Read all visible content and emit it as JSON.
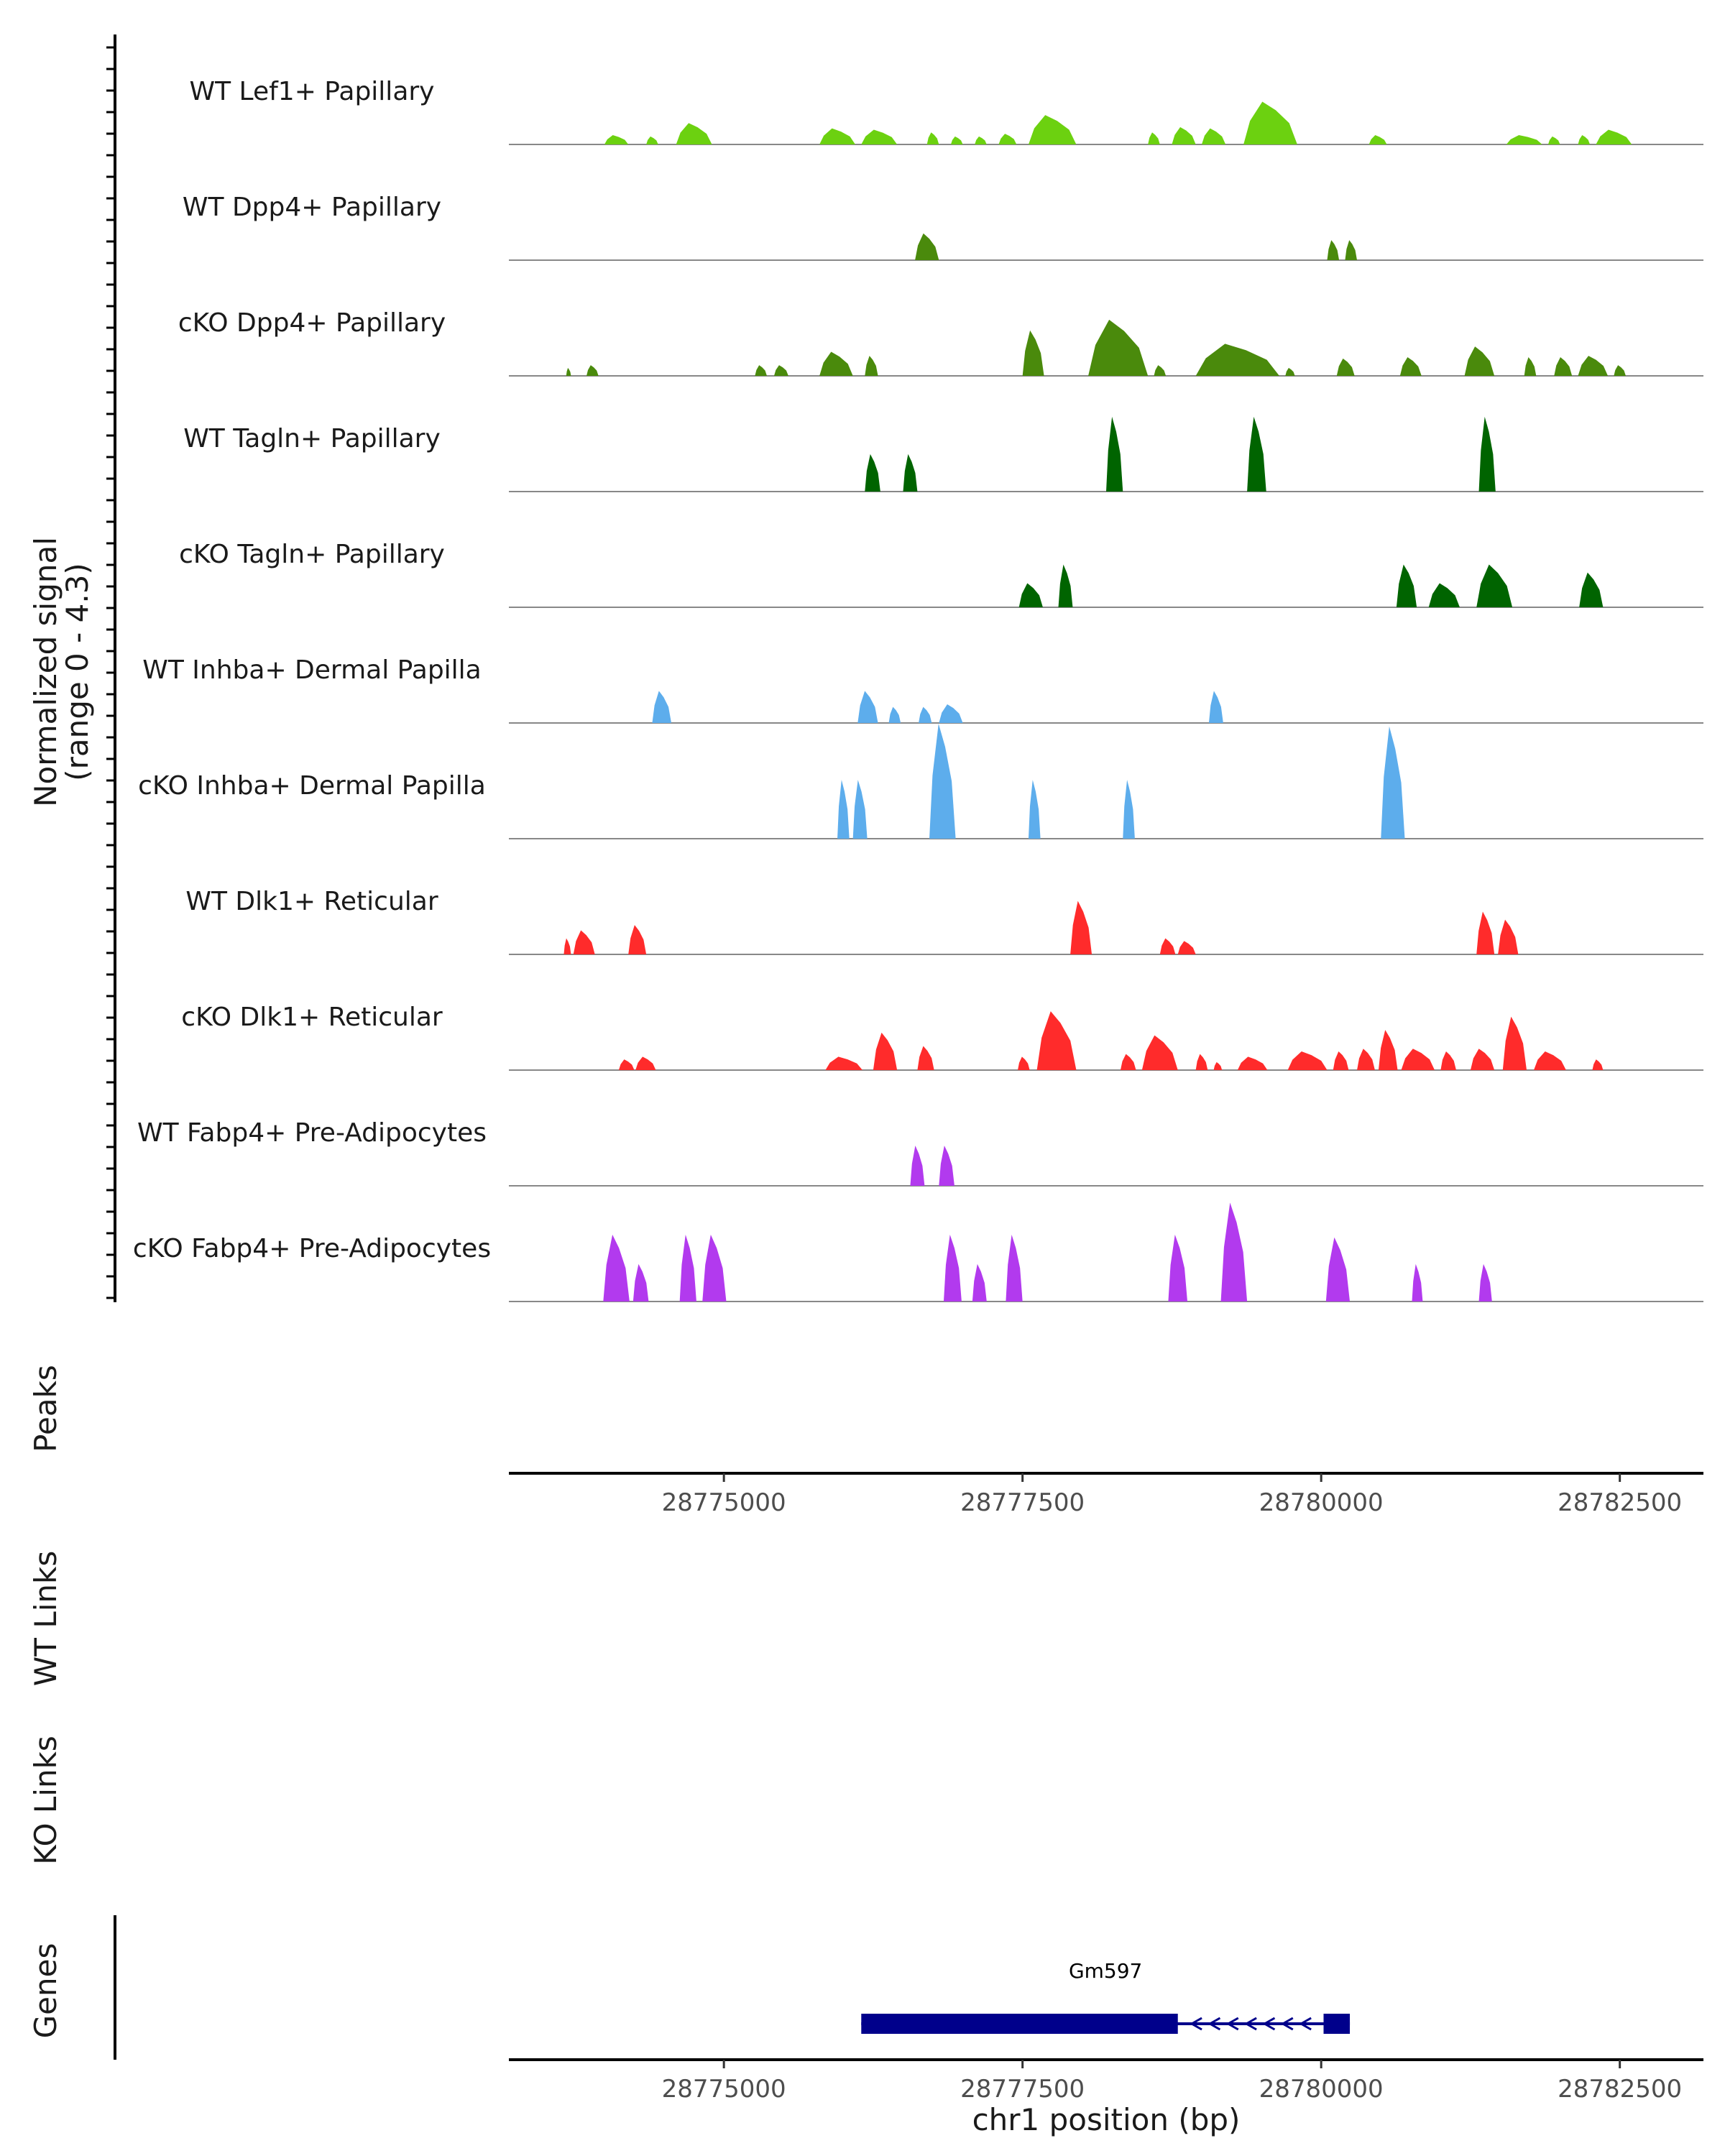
{
  "chart_data": {
    "type": "area",
    "y_axis_title_line1": "Normalized signal",
    "y_axis_title_line2": "(range 0 - 4.3)",
    "y_range": [
      0,
      4.3
    ],
    "chromosome": "chr1",
    "xlim": [
      28773200,
      28783200
    ],
    "xlabel": "chr1 position (bp)",
    "x_ticks": [
      28775000,
      28777500,
      28780000,
      28782500
    ],
    "x_tick_labels": [
      "28775000",
      "28777500",
      "28780000",
      "28782500"
    ],
    "tracks": [
      {
        "name": "WT Lef1+ Papillary",
        "color": "#6CD110",
        "peaks": [
          [
            28774000,
            28774200,
            0.35
          ],
          [
            28774350,
            28774450,
            0.3
          ],
          [
            28774600,
            28774900,
            0.8
          ],
          [
            28775800,
            28776100,
            0.6
          ],
          [
            28776150,
            28776450,
            0.55
          ],
          [
            28776700,
            28776800,
            0.45
          ],
          [
            28776900,
            28777000,
            0.3
          ],
          [
            28777100,
            28777200,
            0.3
          ],
          [
            28777300,
            28777450,
            0.4
          ],
          [
            28777550,
            28777950,
            1.1
          ],
          [
            28778550,
            28778650,
            0.45
          ],
          [
            28778750,
            28778950,
            0.65
          ],
          [
            28779000,
            28779200,
            0.6
          ],
          [
            28779350,
            28779800,
            1.6
          ],
          [
            28780400,
            28780550,
            0.35
          ],
          [
            28781550,
            28781850,
            0.35
          ],
          [
            28781900,
            28782000,
            0.3
          ],
          [
            28782150,
            28782250,
            0.35
          ],
          [
            28782300,
            28782600,
            0.55
          ]
        ]
      },
      {
        "name": "WT Dpp4+ Papillary",
        "color": "#4A8A0C",
        "peaks": [
          [
            28776600,
            28776800,
            1.0
          ],
          [
            28780050,
            28780150,
            0.75
          ],
          [
            28780200,
            28780300,
            0.75
          ]
        ]
      },
      {
        "name": "cKO Dpp4+ Papillary",
        "color": "#4A8A0C",
        "peaks": [
          [
            28773680,
            28773720,
            0.3
          ],
          [
            28773850,
            28773950,
            0.4
          ],
          [
            28775260,
            28775360,
            0.4
          ],
          [
            28775420,
            28775540,
            0.4
          ],
          [
            28775800,
            28776080,
            0.9
          ],
          [
            28776180,
            28776290,
            0.75
          ],
          [
            28777500,
            28777680,
            1.7
          ],
          [
            28778050,
            28778550,
            2.1
          ],
          [
            28778600,
            28778700,
            0.4
          ],
          [
            28778950,
            28779650,
            1.2
          ],
          [
            28779700,
            28779780,
            0.3
          ],
          [
            28780130,
            28780280,
            0.65
          ],
          [
            28780660,
            28780840,
            0.7
          ],
          [
            28781200,
            28781450,
            1.1
          ],
          [
            28781700,
            28781800,
            0.7
          ],
          [
            28781950,
            28782100,
            0.7
          ],
          [
            28782150,
            28782400,
            0.75
          ],
          [
            28782450,
            28782550,
            0.4
          ]
        ]
      },
      {
        "name": "WT Tagln+ Papillary",
        "color": "#006400",
        "peaks": [
          [
            28776180,
            28776310,
            1.4
          ],
          [
            28776500,
            28776620,
            1.4
          ],
          [
            28778200,
            28778340,
            2.8
          ],
          [
            28779380,
            28779540,
            2.8
          ],
          [
            28781320,
            28781460,
            2.8
          ]
        ]
      },
      {
        "name": "cKO Tagln+ Papillary",
        "color": "#006400",
        "peaks": [
          [
            28777470,
            28777670,
            0.9
          ],
          [
            28777800,
            28777920,
            1.6
          ],
          [
            28780630,
            28780800,
            1.6
          ],
          [
            28780900,
            28781160,
            0.9
          ],
          [
            28781300,
            28781600,
            1.6
          ],
          [
            28782160,
            28782360,
            1.3
          ]
        ]
      },
      {
        "name": "WT Inhba+ Dermal Papilla",
        "color": "#5DADEC",
        "peaks": [
          [
            28774400,
            28774560,
            1.2
          ],
          [
            28776120,
            28776290,
            1.2
          ],
          [
            28776380,
            28776480,
            0.6
          ],
          [
            28776630,
            28776740,
            0.6
          ],
          [
            28776800,
            28777000,
            0.7
          ],
          [
            28779060,
            28779180,
            1.2
          ]
        ]
      },
      {
        "name": "cKO Inhba+ Dermal Papilla",
        "color": "#5DADEC",
        "peaks": [
          [
            28775950,
            28776050,
            2.2
          ],
          [
            28776080,
            28776200,
            2.2
          ],
          [
            28776720,
            28776940,
            4.3
          ],
          [
            28777550,
            28777650,
            2.2
          ],
          [
            28778340,
            28778440,
            2.2
          ],
          [
            28780500,
            28780700,
            4.2
          ]
        ]
      },
      {
        "name": "WT Dlk1+ Reticular",
        "color": "#FF2B2B",
        "peaks": [
          [
            28773660,
            28773720,
            0.6
          ],
          [
            28773740,
            28773920,
            0.9
          ],
          [
            28774200,
            28774350,
            1.1
          ],
          [
            28777900,
            28778080,
            2.0
          ],
          [
            28778650,
            28778780,
            0.6
          ],
          [
            28778800,
            28778950,
            0.5
          ],
          [
            28781300,
            28781450,
            1.6
          ],
          [
            28781480,
            28781650,
            1.3
          ]
        ]
      },
      {
        "name": "cKO Dlk1+ Reticular",
        "color": "#FF2B2B",
        "peaks": [
          [
            28774120,
            28774250,
            0.4
          ],
          [
            28774260,
            28774430,
            0.5
          ],
          [
            28775850,
            28776160,
            0.5
          ],
          [
            28776250,
            28776450,
            1.4
          ],
          [
            28776620,
            28776760,
            0.9
          ],
          [
            28777460,
            28777560,
            0.5
          ],
          [
            28777620,
            28777950,
            2.2
          ],
          [
            28778320,
            28778450,
            0.6
          ],
          [
            28778500,
            28778800,
            1.3
          ],
          [
            28778950,
            28779050,
            0.6
          ],
          [
            28779100,
            28779170,
            0.3
          ],
          [
            28779300,
            28779550,
            0.5
          ],
          [
            28779720,
            28780050,
            0.7
          ],
          [
            28780100,
            28780230,
            0.7
          ],
          [
            28780300,
            28780450,
            0.8
          ],
          [
            28780480,
            28780640,
            1.5
          ],
          [
            28780670,
            28780950,
            0.8
          ],
          [
            28781000,
            28781130,
            0.7
          ],
          [
            28781250,
            28781450,
            0.8
          ],
          [
            28781520,
            28781720,
            2.0
          ],
          [
            28781780,
            28782050,
            0.7
          ],
          [
            28782270,
            28782360,
            0.4
          ]
        ]
      },
      {
        "name": "WT Fabp4+ Pre-Adipocytes",
        "color": "#B23AEE",
        "peaks": [
          [
            28776560,
            28776680,
            1.5
          ],
          [
            28776800,
            28776930,
            1.5
          ]
        ]
      },
      {
        "name": "cKO Fabp4+ Pre-Adipocytes",
        "color": "#B23AEE",
        "peaks": [
          [
            28773990,
            28774210,
            2.5
          ],
          [
            28774240,
            28774370,
            1.4
          ],
          [
            28774630,
            28774770,
            2.5
          ],
          [
            28774820,
            28775020,
            2.5
          ],
          [
            28776840,
            28776990,
            2.5
          ],
          [
            28777080,
            28777200,
            1.4
          ],
          [
            28777360,
            28777500,
            2.5
          ],
          [
            28778720,
            28778880,
            2.5
          ],
          [
            28779160,
            28779380,
            3.7
          ],
          [
            28780040,
            28780240,
            2.4
          ],
          [
            28780760,
            28780850,
            1.4
          ],
          [
            28781320,
            28781430,
            1.4
          ]
        ]
      }
    ],
    "empty_tracks": [
      "Peaks",
      "WT Links",
      "KO Links"
    ],
    "genes": [
      {
        "name": "Gm597",
        "start": 28776150,
        "end": 28780240,
        "strand": "-",
        "exons": [
          [
            28776150,
            28778800
          ],
          [
            28780020,
            28780240
          ]
        ]
      }
    ],
    "genes_track_title": "Genes"
  }
}
